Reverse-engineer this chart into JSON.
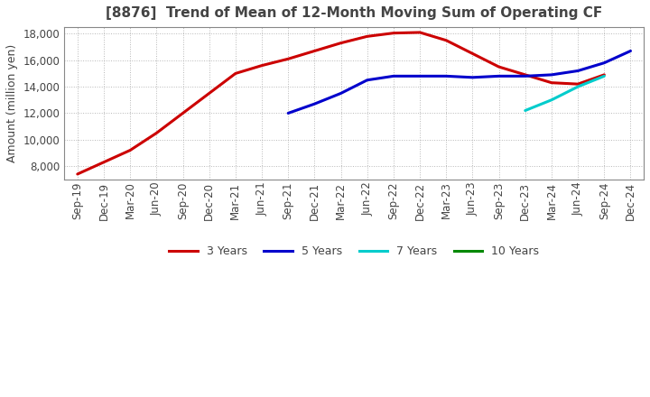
{
  "title": "[8876]  Trend of Mean of 12-Month Moving Sum of Operating CF",
  "ylabel": "Amount (million yen)",
  "background_color": "#ffffff",
  "plot_background_color": "#ffffff",
  "grid_color": "#999999",
  "ylim": [
    7000,
    18500
  ],
  "yticks": [
    8000,
    10000,
    12000,
    14000,
    16000,
    18000
  ],
  "xtick_labels": [
    "Sep-19",
    "Dec-19",
    "Mar-20",
    "Jun-20",
    "Sep-20",
    "Dec-20",
    "Mar-21",
    "Jun-21",
    "Sep-21",
    "Dec-21",
    "Mar-22",
    "Jun-22",
    "Sep-22",
    "Dec-22",
    "Mar-23",
    "Jun-23",
    "Sep-23",
    "Dec-23",
    "Mar-24",
    "Jun-24",
    "Sep-24",
    "Dec-24"
  ],
  "series_3y": {
    "label": "3 Years",
    "color": "#cc0000",
    "x": [
      0,
      1,
      2,
      3,
      4,
      5,
      6,
      7,
      8,
      9,
      10,
      11,
      12,
      13,
      14,
      15,
      16,
      17,
      18,
      19,
      20
    ],
    "y": [
      7400,
      8300,
      9200,
      10500,
      12000,
      13500,
      15000,
      15600,
      16100,
      16700,
      17300,
      17800,
      18050,
      18100,
      17500,
      16500,
      15500,
      14900,
      14300,
      14200,
      14900
    ]
  },
  "series_5y": {
    "label": "5 Years",
    "color": "#0000cc",
    "x": [
      8,
      9,
      10,
      11,
      12,
      13,
      14,
      15,
      16,
      17,
      18,
      19,
      20,
      21
    ],
    "y": [
      12000,
      12700,
      13500,
      14500,
      14800,
      14800,
      14800,
      14700,
      14800,
      14800,
      14900,
      15200,
      15800,
      16700
    ]
  },
  "series_7y": {
    "label": "7 Years",
    "color": "#00cccc",
    "x": [
      17,
      18,
      19,
      20
    ],
    "y": [
      12200,
      13000,
      14000,
      14800
    ]
  },
  "series_10y": {
    "label": "10 Years",
    "color": "#008800",
    "x": [],
    "y": []
  },
  "title_color": "#444444",
  "title_fontsize": 11,
  "label_fontsize": 9,
  "tick_fontsize": 8.5
}
